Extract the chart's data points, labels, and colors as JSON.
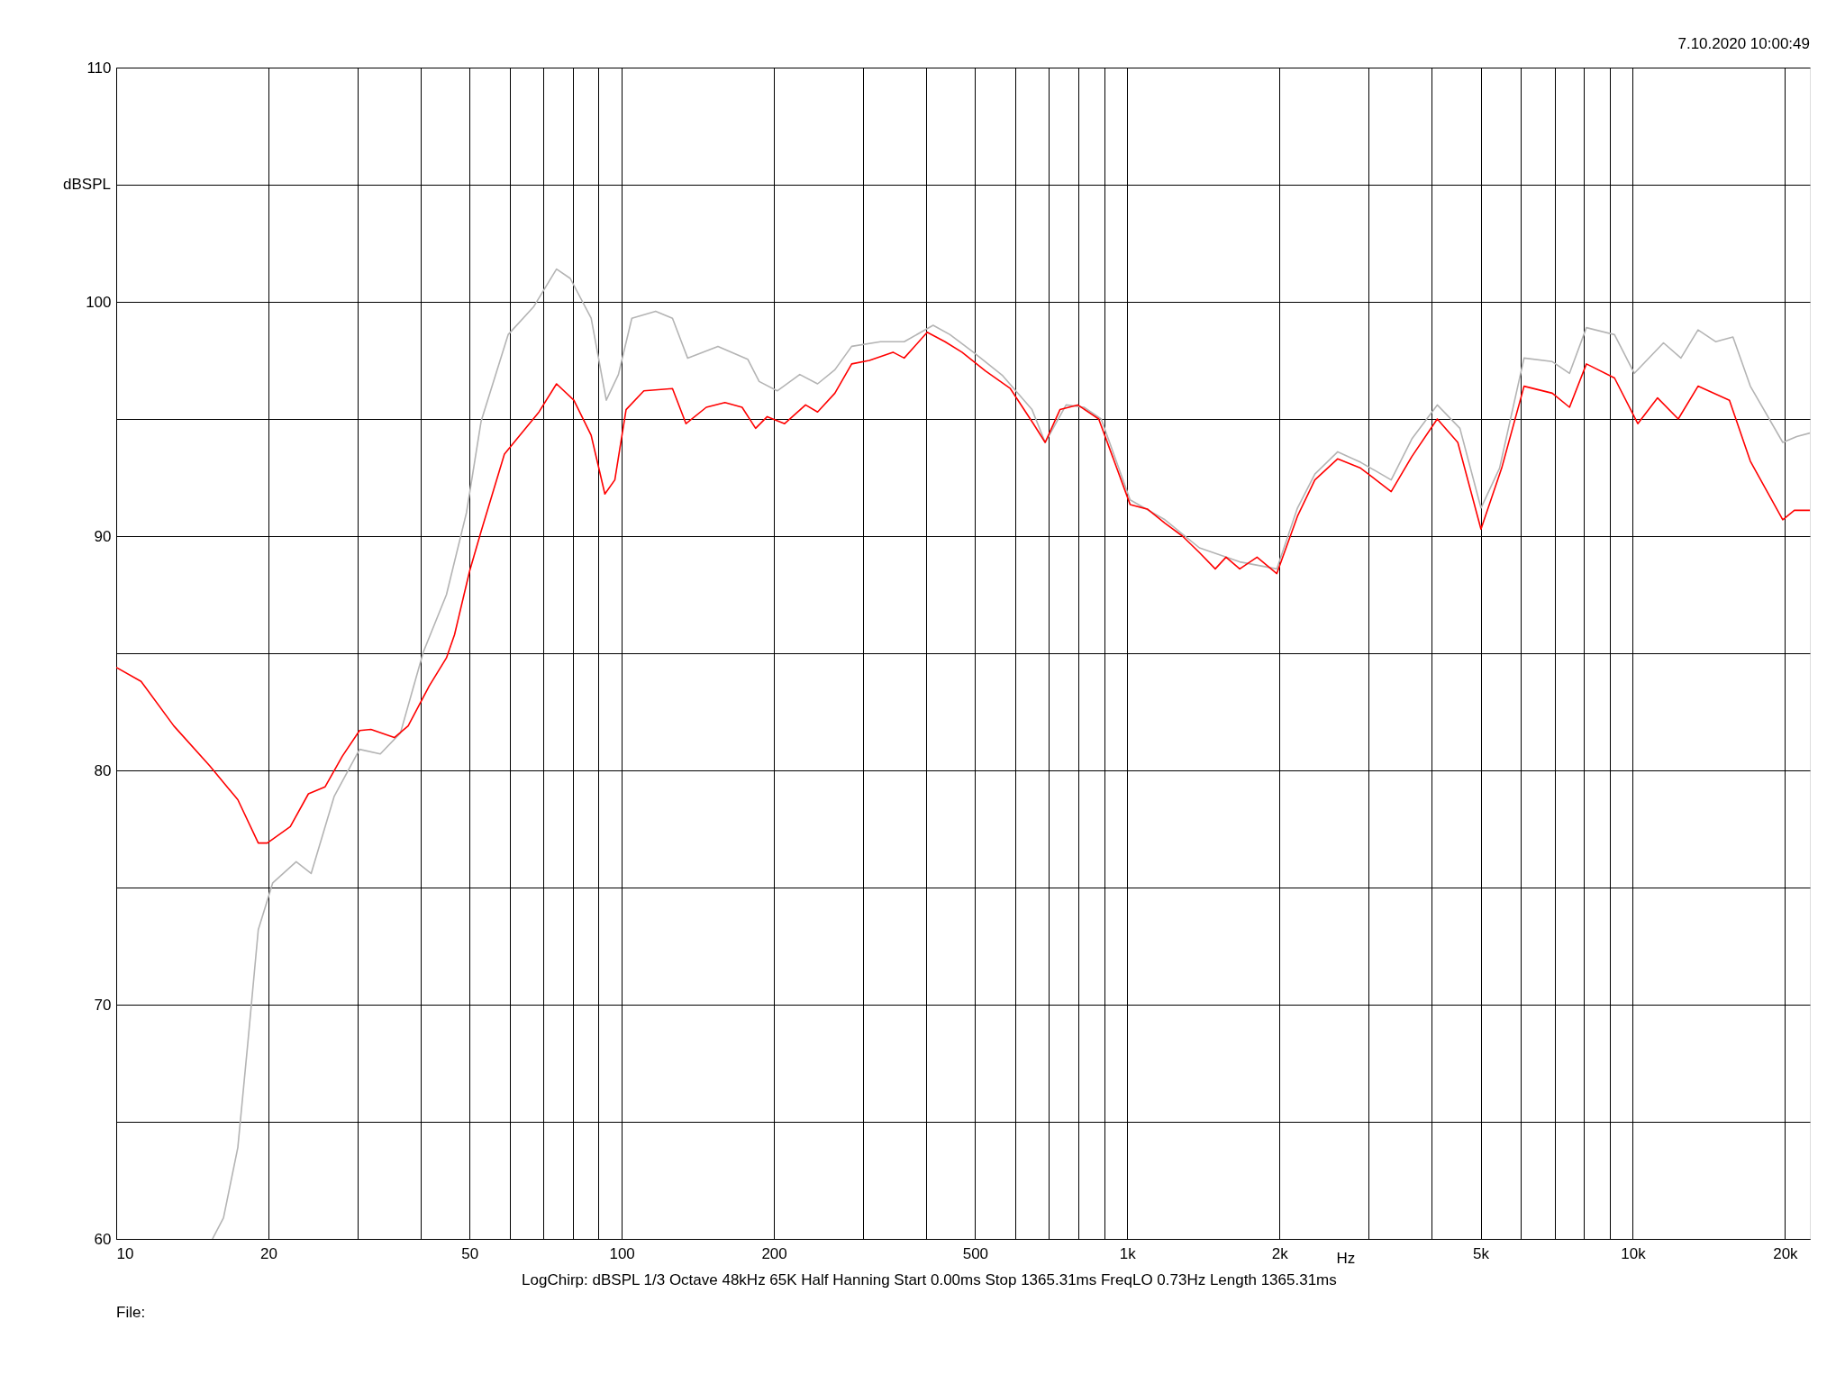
{
  "chart_data": {
    "type": "line",
    "xlabel": "Hz",
    "ylabel": "dBSPL",
    "annotations": [
      "7.10.2020 10:00:49",
      "LogChirp:  dBSPL   1/3 Octave   48kHz   65K   Half Hanning   Start 0.00ms   Stop 1365.31ms   FreqLO 0.73Hz   Length 1365.31ms",
      "File:"
    ],
    "log": "x",
    "grid": true,
    "marker": "none",
    "line_style": "solid",
    "xlim": [
      10,
      22400
    ],
    "ylim": [
      60,
      110
    ],
    "xticks": [
      {
        "value": 10,
        "label": "10"
      },
      {
        "value": 20,
        "label": "20"
      },
      {
        "value": 30,
        "label": null
      },
      {
        "value": 40,
        "label": null
      },
      {
        "value": 50,
        "label": "50"
      },
      {
        "value": 60,
        "label": null
      },
      {
        "value": 70,
        "label": null
      },
      {
        "value": 80,
        "label": null
      },
      {
        "value": 90,
        "label": null
      },
      {
        "value": 100,
        "label": "100"
      },
      {
        "value": 200,
        "label": "200"
      },
      {
        "value": 300,
        "label": null
      },
      {
        "value": 400,
        "label": null
      },
      {
        "value": 500,
        "label": "500"
      },
      {
        "value": 600,
        "label": null
      },
      {
        "value": 700,
        "label": null
      },
      {
        "value": 800,
        "label": null
      },
      {
        "value": 900,
        "label": null
      },
      {
        "value": 1000,
        "label": "1k"
      },
      {
        "value": 2000,
        "label": "2k"
      },
      {
        "value": 3000,
        "label": null
      },
      {
        "value": 4000,
        "label": null
      },
      {
        "value": 5000,
        "label": "5k"
      },
      {
        "value": 6000,
        "label": null
      },
      {
        "value": 7000,
        "label": null
      },
      {
        "value": 8000,
        "label": null
      },
      {
        "value": 9000,
        "label": null
      },
      {
        "value": 10000,
        "label": "10k"
      },
      {
        "value": 20000,
        "label": "20k"
      }
    ],
    "yticks": [
      60,
      {
        "value": 65,
        "label": null
      },
      70,
      {
        "value": 75,
        "label": null
      },
      80,
      {
        "value": 85,
        "label": null
      },
      90,
      {
        "value": 95,
        "label": null
      },
      100,
      {
        "value": 105,
        "label": null
      },
      110
    ],
    "series": [
      {
        "color": "#b4b4b4",
        "x": [
          15.5,
          16.3,
          17.4,
          18.2,
          19.1,
          20.4,
          22.7,
          24.3,
          27.0,
          30.3,
          33.3,
          36.5,
          40.5,
          45.0,
          49.3,
          52.7,
          59.6,
          67.0,
          74.3,
          79.1,
          87.0,
          93.2,
          98.5,
          104.7,
          116.7,
          126,
          135,
          155,
          177.5,
          187,
          203,
          225,
          244,
          264,
          285,
          325,
          362,
          413,
          446,
          496,
          567,
          648,
          688,
          757,
          821,
          888,
          1013,
          1187,
          1389,
          1669,
          1976,
          2171,
          2350,
          2608,
          2895,
          3327,
          3656,
          4104,
          4550,
          5008,
          5450,
          6094,
          6930,
          7496,
          8095,
          9200,
          10070,
          11500,
          12450,
          13460,
          14580,
          15780,
          17080,
          19800,
          21100,
          22400
        ],
        "values": [
          60.0,
          60.9,
          63.9,
          68.3,
          73.2,
          75.2,
          76.1,
          75.6,
          78.9,
          80.9,
          80.7,
          81.6,
          85.05,
          87.5,
          91.0,
          94.9,
          98.6,
          99.8,
          101.4,
          101.0,
          99.3,
          95.8,
          96.9,
          99.3,
          99.6,
          99.3,
          97.6,
          98.1,
          97.55,
          96.6,
          96.2,
          96.9,
          96.5,
          97.1,
          98.1,
          98.3,
          98.3,
          99.0,
          98.6,
          97.85,
          96.85,
          95.4,
          94.0,
          95.6,
          95.5,
          95.0,
          91.55,
          90.7,
          89.5,
          88.9,
          88.6,
          91.2,
          92.65,
          93.6,
          93.15,
          92.4,
          94.15,
          95.6,
          94.6,
          91.2,
          92.9,
          97.6,
          97.45,
          96.95,
          98.9,
          98.6,
          96.95,
          98.25,
          97.6,
          98.8,
          98.3,
          98.5,
          96.4,
          94.0,
          94.25,
          94.4
        ]
      },
      {
        "color": "#ff0000",
        "x": [
          10,
          11.2,
          13.0,
          15.3,
          17.4,
          19.1,
          19.9,
          22.1,
          24.0,
          25.9,
          28.0,
          30.3,
          31.9,
          35.5,
          37.8,
          41.6,
          45.0,
          46.7,
          50.0,
          52.7,
          58.6,
          68.6,
          74.3,
          80.4,
          87.0,
          92.6,
          96.9,
          102,
          110.6,
          126,
          134,
          147,
          160,
          173,
          184,
          194,
          210,
          231,
          244,
          264,
          285,
          309,
          344,
          362,
          402,
          436,
          471,
          524,
          587,
          652,
          688,
          736,
          798,
          878,
          935,
          1013,
          1097,
          1187,
          1286,
          1389,
          1493,
          1568,
          1669,
          1806,
          1976,
          2171,
          2350,
          2608,
          2895,
          3327,
          3656,
          4104,
          4506,
          5008,
          5503,
          6094,
          6930,
          7496,
          8095,
          9200,
          10230,
          11195,
          12300,
          13460,
          15530,
          17080,
          19800,
          20870,
          22400
        ],
        "values": [
          84.4,
          83.8,
          81.9,
          80.2,
          78.75,
          76.9,
          76.9,
          77.6,
          79.0,
          79.3,
          80.6,
          81.7,
          81.75,
          81.4,
          81.9,
          83.6,
          84.8,
          85.8,
          88.5,
          90.2,
          93.5,
          95.3,
          96.5,
          95.8,
          94.3,
          91.8,
          92.4,
          95.4,
          96.2,
          96.3,
          94.8,
          95.5,
          95.7,
          95.5,
          94.6,
          95.1,
          94.8,
          95.6,
          95.3,
          96.1,
          97.35,
          97.5,
          97.85,
          97.6,
          98.7,
          98.3,
          97.85,
          97.05,
          96.3,
          94.8,
          94.0,
          95.4,
          95.6,
          95.0,
          93.4,
          91.35,
          91.15,
          90.55,
          90.0,
          89.3,
          88.6,
          89.1,
          88.6,
          89.1,
          88.4,
          90.85,
          92.4,
          93.3,
          92.9,
          91.9,
          93.4,
          95.0,
          94.0,
          90.3,
          92.9,
          96.4,
          96.1,
          95.5,
          97.35,
          96.75,
          94.8,
          95.9,
          95.0,
          96.4,
          95.8,
          93.2,
          90.7,
          91.1,
          91.1
        ]
      }
    ]
  }
}
